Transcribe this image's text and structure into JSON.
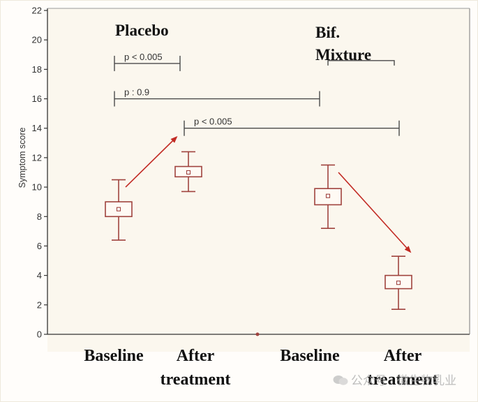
{
  "chart_data": {
    "type": "boxplot",
    "ylabel": "Symptom score",
    "ylim": [
      0,
      22
    ],
    "yticks": [
      0,
      2,
      4,
      6,
      8,
      10,
      12,
      14,
      16,
      18,
      20,
      22
    ],
    "grid": false,
    "groups": [
      {
        "name": "Placebo",
        "categories": [
          "Baseline",
          "After\ntreatment"
        ]
      },
      {
        "name": "Bif.\nMixture",
        "categories": [
          "Baseline",
          "After\ntreatment"
        ]
      }
    ],
    "boxes": [
      {
        "group": "Placebo",
        "category": "Baseline",
        "whisker_low": 6.4,
        "q1": 8.0,
        "mean": 8.5,
        "q3": 9.0,
        "whisker_high": 10.5
      },
      {
        "group": "Placebo",
        "category": "After treatment",
        "whisker_low": 9.7,
        "q1": 10.7,
        "mean": 11.0,
        "q3": 11.4,
        "whisker_high": 12.4
      },
      {
        "group": "Bif. Mixture",
        "category": "Baseline",
        "whisker_low": 7.2,
        "q1": 8.8,
        "mean": 9.4,
        "q3": 9.9,
        "whisker_high": 11.5
      },
      {
        "group": "Bif. Mixture",
        "category": "After treatment",
        "whisker_low": 1.7,
        "q1": 3.1,
        "mean": 3.5,
        "q3": 4.0,
        "whisker_high": 5.3
      }
    ],
    "brackets": [
      {
        "label": "p < 0.005",
        "from": 0,
        "to": 1,
        "y": 18.4
      },
      {
        "label": "p : 0.9",
        "from": 0,
        "to": 2,
        "y": 16.0
      },
      {
        "label": "p < 0.005",
        "from": 1,
        "to": 3,
        "y": 14.0
      },
      {
        "label": "",
        "from": 2,
        "to": 3,
        "y": 18.5
      }
    ],
    "arrows": [
      {
        "from_box": 0,
        "to_box": 1,
        "direction": "up",
        "from_y": 10.0,
        "to_y": 13.4
      },
      {
        "from_box": 2,
        "to_box": 3,
        "direction": "down",
        "from_y": 11.0,
        "to_y": 5.6
      }
    ],
    "colors": {
      "box": "#a0433e",
      "arrow": "#c22b24",
      "bracket": "#4a4a4a",
      "axis": "#333333"
    }
  },
  "watermark": {
    "text": "公众号 · 微生物乳业",
    "icon": "wechat-icon"
  }
}
